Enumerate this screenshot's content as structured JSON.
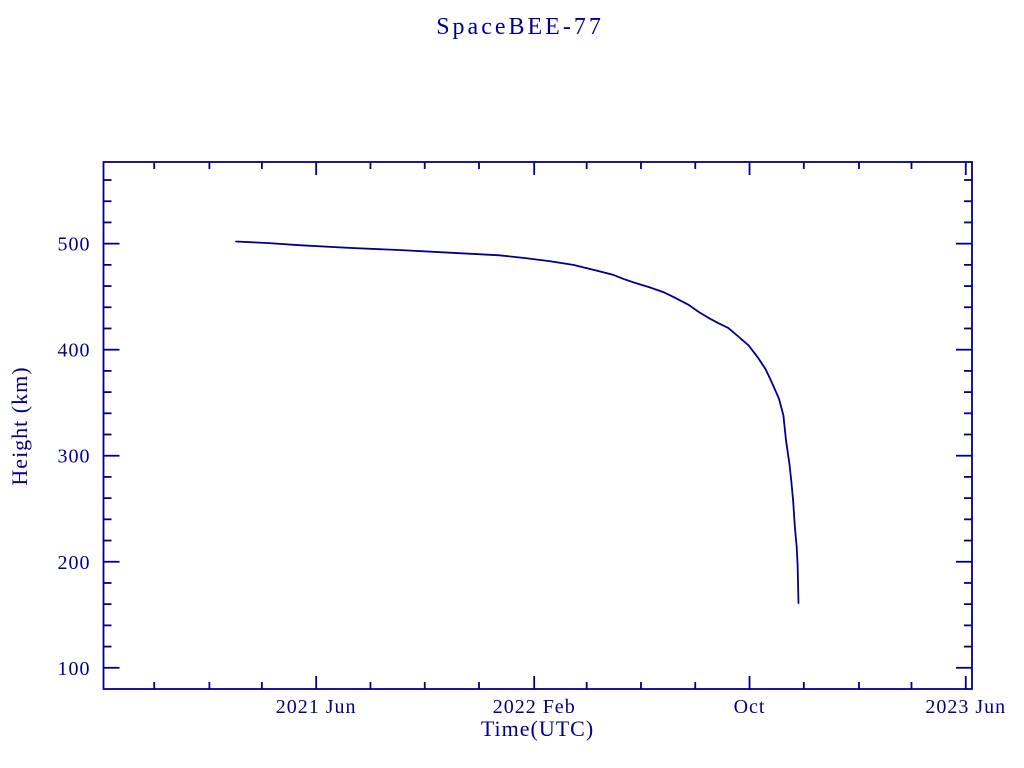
{
  "page": {
    "background": "#ffffff",
    "accent_color": "#00008B"
  },
  "chart_data": {
    "type": "line",
    "title": "SpaceBEE-77",
    "xlabel": "Time(UTC)",
    "ylabel": "Height (km)",
    "legend": null,
    "grid": false,
    "x_min": "2020-10-05",
    "x_max": "2023-06-08",
    "y_min": 80,
    "y_max": 577,
    "x_major_ticks": [
      {
        "date": "2021-06-01",
        "label": "2021 Jun"
      },
      {
        "date": "2022-02-01",
        "label": "2022 Feb"
      },
      {
        "date": "2022-10-01",
        "label": "Oct"
      },
      {
        "date": "2023-06-01",
        "label": "2023 Jun"
      }
    ],
    "x_minor_tick_start": "2020-12-01",
    "x_minor_step_months": 2,
    "y_major_ticks": [
      {
        "value": 100,
        "label": "100"
      },
      {
        "value": 200,
        "label": "200"
      },
      {
        "value": 300,
        "label": "300"
      },
      {
        "value": 400,
        "label": "400"
      },
      {
        "value": 500,
        "label": "500"
      }
    ],
    "y_minor_step": 20,
    "line_color": "#00008B",
    "axis_color": "#00008B",
    "series": [
      {
        "name": "SpaceBEE-77 orbital height",
        "points": [
          [
            "2021-03-03",
            502
          ],
          [
            "2021-04-09",
            500.5
          ],
          [
            "2021-05-13",
            498.5
          ],
          [
            "2021-07-08",
            496
          ],
          [
            "2021-09-02",
            494
          ],
          [
            "2021-10-29",
            491.5
          ],
          [
            "2021-12-24",
            489
          ],
          [
            "2022-01-21",
            486.5
          ],
          [
            "2022-02-18",
            483.5
          ],
          [
            "2022-03-17",
            480
          ],
          [
            "2022-04-15",
            474
          ],
          [
            "2022-05-01",
            470.5
          ],
          [
            "2022-05-13",
            466.5
          ],
          [
            "2022-05-29",
            462
          ],
          [
            "2022-06-10",
            459
          ],
          [
            "2022-06-27",
            454
          ],
          [
            "2022-07-08",
            449.5
          ],
          [
            "2022-07-25",
            442
          ],
          [
            "2022-08-05",
            435.5
          ],
          [
            "2022-08-16",
            430
          ],
          [
            "2022-08-27",
            425
          ],
          [
            "2022-09-07",
            420.5
          ],
          [
            "2022-09-19",
            412
          ],
          [
            "2022-09-30",
            404
          ],
          [
            "2022-10-11",
            392
          ],
          [
            "2022-10-19",
            381.5
          ],
          [
            "2022-10-25",
            371
          ],
          [
            "2022-11-03",
            354
          ],
          [
            "2022-11-08",
            338
          ],
          [
            "2022-11-11",
            314.5
          ],
          [
            "2022-11-15",
            291
          ],
          [
            "2022-11-17",
            275
          ],
          [
            "2022-11-19",
            258
          ],
          [
            "2022-11-21",
            232.5
          ],
          [
            "2022-11-23",
            214
          ],
          [
            "2022-11-24",
            197
          ],
          [
            "2022-11-25",
            161
          ]
        ]
      }
    ]
  }
}
